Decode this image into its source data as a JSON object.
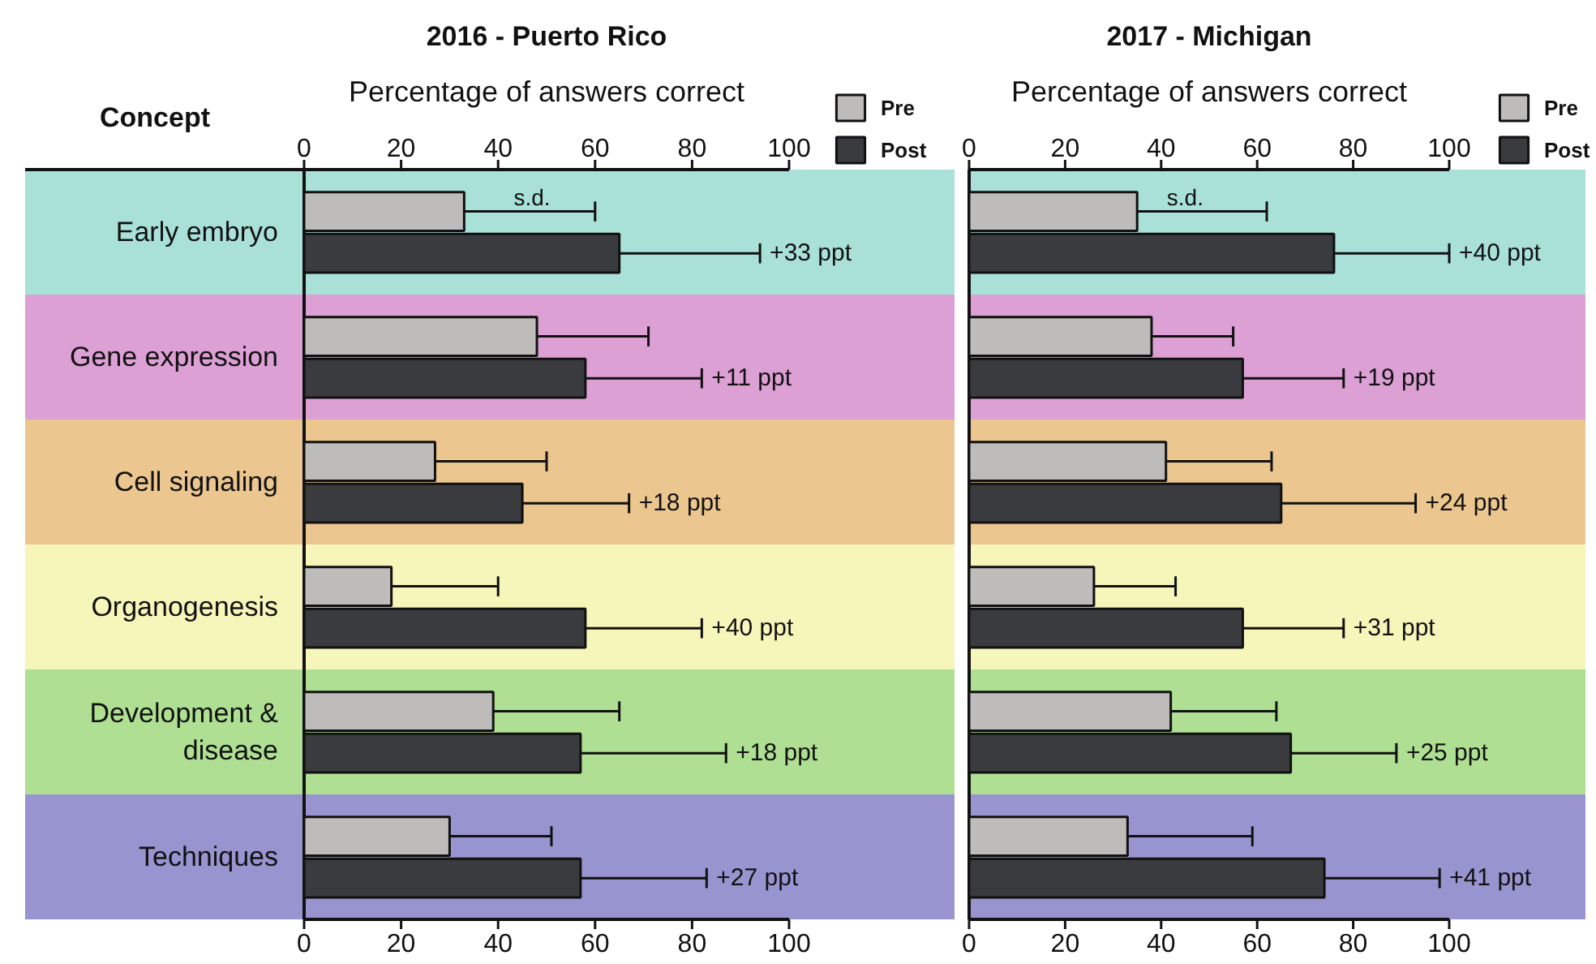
{
  "chart_data": [
    {
      "type": "bar",
      "orientation": "horizontal",
      "title": "2016 - Puerto Rico",
      "x2label": "Percentage of answers correct",
      "ylabel": "Concept",
      "categories": [
        "Early embryo",
        "Gene expression",
        "Cell signaling",
        "Organogenesis",
        "Development & disease",
        "Techniques"
      ],
      "series": [
        {
          "name": "Pre",
          "color": "#bdbcba",
          "values": [
            33,
            48,
            27,
            18,
            39,
            30
          ],
          "errors": [
            [
              33,
              60
            ],
            [
              48,
              71
            ],
            [
              27,
              50
            ],
            [
              18,
              40
            ],
            [
              39,
              65
            ],
            [
              30,
              51
            ]
          ]
        },
        {
          "name": "Post",
          "color": "#3a3b3e",
          "values": [
            65,
            58,
            45,
            58,
            57,
            57
          ],
          "errors": [
            [
              65,
              94
            ],
            [
              58,
              82
            ],
            [
              45,
              67
            ],
            [
              58,
              82
            ],
            [
              57,
              87
            ],
            [
              57,
              83
            ]
          ]
        }
      ],
      "xlim": [
        0,
        100
      ],
      "xticks": [
        0,
        20,
        40,
        60,
        80,
        100
      ],
      "x2lim": [
        0,
        100
      ],
      "x2ticks": [
        0,
        20,
        40,
        60,
        80,
        100
      ],
      "bands": [
        {
          "axis": "y",
          "from": "Early embryo",
          "to": "Early embryo",
          "color": "#a9e1d8"
        },
        {
          "axis": "y",
          "from": "Gene expression",
          "to": "Gene expression",
          "color": "#dca0d4"
        },
        {
          "axis": "y",
          "from": "Cell signaling",
          "to": "Cell signaling",
          "color": "#ecc68f"
        },
        {
          "axis": "y",
          "from": "Organogenesis",
          "to": "Organogenesis",
          "color": "#f6f5ba"
        },
        {
          "axis": "y",
          "from": "Development & disease",
          "to": "Development & disease",
          "color": "#afdf92"
        },
        {
          "axis": "y",
          "from": "Techniques",
          "to": "Techniques",
          "color": "#9894d0"
        }
      ],
      "annotations": [
        {
          "text": "s.d.",
          "x": 47,
          "y": "Early embryo"
        },
        "+33 ppt",
        "+11 ppt",
        "+18 ppt",
        "+40 ppt",
        "+18 ppt",
        "+27 ppt"
      ],
      "legend": "top right",
      "grid": false
    },
    {
      "type": "bar",
      "orientation": "horizontal",
      "title": "2017 - Michigan",
      "x2label": "Percentage of answers correct",
      "categories": [
        "Early embryo",
        "Gene expression",
        "Cell signaling",
        "Organogenesis",
        "Development & disease",
        "Techniques"
      ],
      "series": [
        {
          "name": "Pre",
          "color": "#bdbcba",
          "values": [
            35,
            38,
            41,
            26,
            42,
            33
          ],
          "errors": [
            [
              35,
              62
            ],
            [
              38,
              55
            ],
            [
              41,
              63
            ],
            [
              26,
              43
            ],
            [
              42,
              64
            ],
            [
              33,
              59
            ]
          ]
        },
        {
          "name": "Post",
          "color": "#3a3b3e",
          "values": [
            76,
            57,
            65,
            57,
            67,
            74
          ],
          "errors": [
            [
              76,
              100
            ],
            [
              57,
              78
            ],
            [
              65,
              93
            ],
            [
              57,
              78
            ],
            [
              67,
              89
            ],
            [
              74,
              98
            ]
          ]
        }
      ],
      "xlim": [
        0,
        100
      ],
      "xticks": [
        0,
        20,
        40,
        60,
        80,
        100
      ],
      "x2lim": [
        0,
        100
      ],
      "x2ticks": [
        0,
        20,
        40,
        60,
        80,
        100
      ],
      "bands": [
        {
          "axis": "y",
          "from": "Early embryo",
          "to": "Early embryo",
          "color": "#a9e1d8"
        },
        {
          "axis": "y",
          "from": "Gene expression",
          "to": "Gene expression",
          "color": "#dca0d4"
        },
        {
          "axis": "y",
          "from": "Cell signaling",
          "to": "Cell signaling",
          "color": "#ecc68f"
        },
        {
          "axis": "y",
          "from": "Organogenesis",
          "to": "Organogenesis",
          "color": "#f6f5ba"
        },
        {
          "axis": "y",
          "from": "Development & disease",
          "to": "Development & disease",
          "color": "#afdf92"
        },
        {
          "axis": "y",
          "from": "Techniques",
          "to": "Techniques",
          "color": "#9894d0"
        }
      ],
      "annotations": [
        {
          "text": "s.d.",
          "x": 45,
          "y": "Early embryo"
        },
        "+40 ppt",
        "+19 ppt",
        "+24 ppt",
        "+31 ppt",
        "+25 ppt",
        "+41 ppt"
      ],
      "legend": "top right",
      "grid": false,
      "tick_labels": "x"
    }
  ]
}
